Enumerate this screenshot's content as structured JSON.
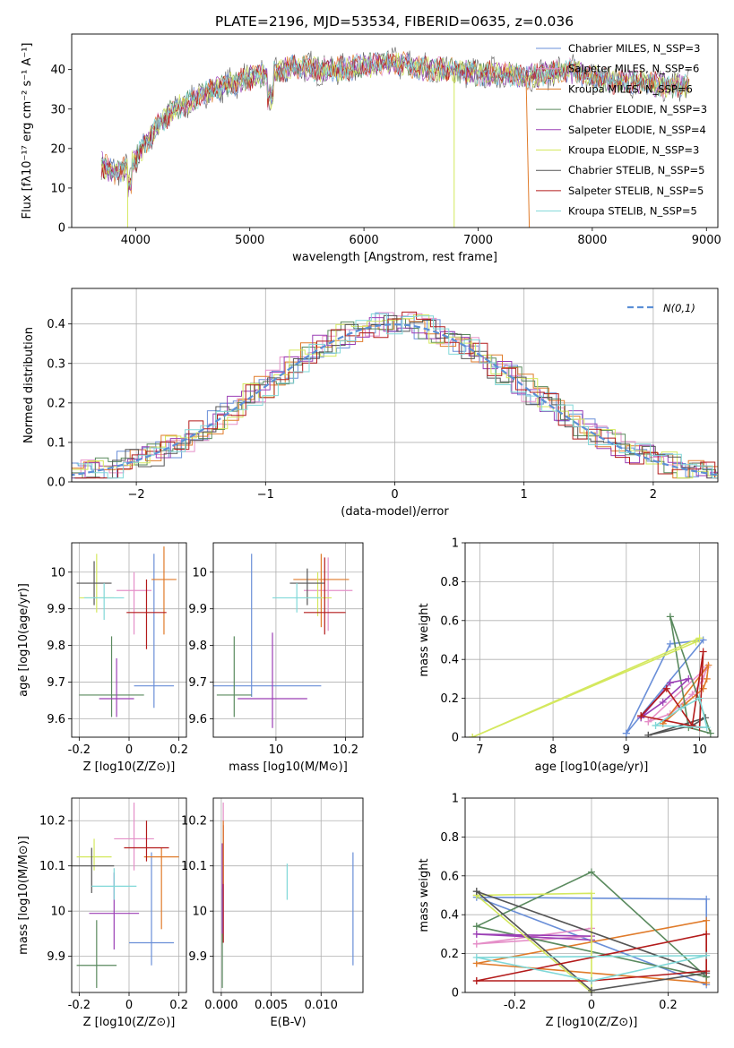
{
  "figure_title": "PLATE=2196, MJD=53534, FIBERID=0635, z=0.036",
  "colors": [
    "#6a8fd8",
    "#e58fc8",
    "#e07b2a",
    "#5a8a5e",
    "#9b3fb5",
    "#d4e85e",
    "#555555",
    "#b31b1b",
    "#80d8d8"
  ],
  "chart_data": [
    {
      "id": "spectrum",
      "type": "line",
      "title": "PLATE=2196, MJD=53534, FIBERID=0635, z=0.036",
      "xlabel": "wavelength [Angstrom, rest frame]",
      "ylabel": "Flux [fλ10⁻¹⁷ erg cm⁻² s⁻¹ A⁻¹]",
      "xlim": [
        3440,
        9100
      ],
      "ylim": [
        0,
        49
      ],
      "xticks": [
        "4000",
        "5000",
        "6000",
        "7000",
        "8000",
        "9000"
      ],
      "yticks": [
        "0",
        "10",
        "20",
        "30",
        "40"
      ],
      "legend_position": "upper-right",
      "series": [
        {
          "name": "Chabrier MILES, N_SSP=3"
        },
        {
          "name": "Salpeter MILES, N_SSP=6"
        },
        {
          "name": "Kroupa MILES, N_SSP=6"
        },
        {
          "name": "Chabrier ELODIE, N_SSP=3"
        },
        {
          "name": "Salpeter ELODIE, N_SSP=4"
        },
        {
          "name": "Kroupa ELODIE, N_SSP=3"
        },
        {
          "name": "Chabrier STELIB, N_SSP=5"
        },
        {
          "name": "Salpeter STELIB, N_SSP=5"
        },
        {
          "name": "Kroupa STELIB, N_SSP=5"
        }
      ],
      "continuum": {
        "x": [
          3700,
          3800,
          3900,
          4000,
          4100,
          4200,
          4300,
          4400,
          4600,
          4800,
          5000,
          5200,
          5400,
          5600,
          5800,
          6000,
          6200,
          6400,
          6600,
          6800,
          7000,
          7200,
          7400,
          7600,
          7800,
          8000,
          8200,
          8400,
          8600,
          8850
        ],
        "y": [
          16,
          14,
          15,
          17,
          22,
          26,
          29,
          31,
          34,
          36,
          38,
          39,
          41,
          40,
          40,
          41,
          42,
          41,
          40,
          40,
          39,
          39,
          38,
          39,
          40,
          38,
          37,
          37,
          36,
          36
        ]
      },
      "dropouts": [
        {
          "x": 3930,
          "label": "Kroupa ELODIE"
        },
        {
          "x": 6790,
          "label": "Kroupa ELODIE"
        },
        {
          "x": 7420,
          "label": "Kroupa MILES"
        }
      ]
    },
    {
      "id": "residuals",
      "type": "histogram",
      "xlabel": "(data-model)/error",
      "ylabel": "Normed distribution",
      "xlim": [
        -2.5,
        2.5
      ],
      "ylim": [
        0,
        0.49
      ],
      "xticks": [
        "−2",
        "−1",
        "0",
        "1",
        "2"
      ],
      "yticks": [
        "0.0",
        "0.1",
        "0.2",
        "0.3",
        "0.4"
      ],
      "legend": "N(0,1)",
      "grid": true
    },
    {
      "id": "age_vs_Z",
      "type": "errorbar",
      "xlabel": "Z [log10(Z/Z⊙)]",
      "ylabel": "age  [log10(age/yr)]",
      "xlim": [
        -0.23,
        0.23
      ],
      "ylim": [
        9.55,
        10.08
      ],
      "xticks": [
        -0.2,
        0.0,
        0.2
      ],
      "yticks": [
        9.6,
        9.7,
        9.8,
        9.9,
        10.0
      ],
      "points": [
        {
          "x": 0.1,
          "y": 9.69,
          "xerr": 0.08,
          "yerr": [
            0.06,
            0.36
          ]
        },
        {
          "x": 0.02,
          "y": 9.95,
          "xerr": 0.07,
          "yerr": [
            0.12,
            0.05
          ]
        },
        {
          "x": 0.14,
          "y": 9.98,
          "xerr": 0.05,
          "yerr": [
            0.15,
            0.09
          ]
        },
        {
          "x": -0.07,
          "y": 9.665,
          "xerr": 0.13,
          "yerr": [
            0.06,
            0.16
          ]
        },
        {
          "x": -0.05,
          "y": 9.655,
          "xerr": 0.07,
          "yerr": [
            0.05,
            0.11
          ]
        },
        {
          "x": -0.13,
          "y": 9.93,
          "xerr": 0.07,
          "yerr": [
            0.04,
            0.12
          ]
        },
        {
          "x": -0.14,
          "y": 9.97,
          "xerr": 0.07,
          "yerr": [
            0.06,
            0.06
          ]
        },
        {
          "x": 0.07,
          "y": 9.89,
          "xerr": 0.08,
          "yerr": [
            0.1,
            0.09
          ]
        },
        {
          "x": -0.1,
          "y": 9.93,
          "xerr": 0.08,
          "yerr": [
            0.06,
            0.04
          ]
        }
      ]
    },
    {
      "id": "age_vs_mass",
      "type": "errorbar",
      "xlabel": "mass [log10(M/M⊙)]",
      "ylabel": "",
      "xlim": [
        9.82,
        10.25
      ],
      "ylim": [
        9.55,
        10.08
      ],
      "xticks": [
        10.0,
        10.2
      ],
      "yticks": [
        9.6,
        9.7,
        9.8,
        9.9,
        10.0
      ],
      "points": [
        {
          "x": 9.93,
          "y": 9.69,
          "xerr": 0.2,
          "yerr": [
            0.03,
            0.36
          ]
        },
        {
          "x": 10.15,
          "y": 9.95,
          "xerr": 0.07,
          "yerr": [
            0.11,
            0.09
          ]
        },
        {
          "x": 10.13,
          "y": 9.98,
          "xerr": 0.08,
          "yerr": [
            0.13,
            0.07
          ]
        },
        {
          "x": 9.88,
          "y": 9.665,
          "xerr": 0.05,
          "yerr": [
            0.06,
            0.16
          ]
        },
        {
          "x": 9.99,
          "y": 9.655,
          "xerr": 0.1,
          "yerr": [
            0.08,
            0.18
          ]
        },
        {
          "x": 10.12,
          "y": 9.93,
          "xerr": 0.04,
          "yerr": [
            0.05,
            0.07
          ]
        },
        {
          "x": 10.09,
          "y": 9.97,
          "xerr": 0.05,
          "yerr": [
            0.06,
            0.04
          ]
        },
        {
          "x": 10.14,
          "y": 9.89,
          "xerr": 0.06,
          "yerr": [
            0.06,
            0.15
          ]
        },
        {
          "x": 10.06,
          "y": 9.93,
          "xerr": 0.07,
          "yerr": [
            0.04,
            0.04
          ]
        }
      ]
    },
    {
      "id": "weight_vs_age",
      "type": "line",
      "xlabel": "age  [log10(age/yr)]",
      "ylabel": "mass weight",
      "xlim": [
        6.8,
        10.25
      ],
      "ylim": [
        0,
        1.0
      ],
      "xticks": [
        7,
        8,
        9,
        10
      ],
      "yticks": [
        0.0,
        0.2,
        0.4,
        0.6,
        0.8,
        1.0
      ],
      "series": [
        {
          "x": [
            9.0,
            9.6,
            10.05,
            9.0
          ],
          "y": [
            0.02,
            0.48,
            0.5,
            0.02
          ]
        },
        {
          "x": [
            9.3,
            9.6,
            9.9,
            10.05,
            10.1,
            9.3
          ],
          "y": [
            0.08,
            0.12,
            0.22,
            0.3,
            0.36,
            0.08
          ]
        },
        {
          "x": [
            9.5,
            9.8,
            10.05,
            10.1,
            10.12,
            9.5
          ],
          "y": [
            0.07,
            0.17,
            0.25,
            0.3,
            0.37,
            0.07
          ]
        },
        {
          "x": [
            9.6,
            9.85,
            10.15,
            9.6
          ],
          "y": [
            0.62,
            0.05,
            0.02,
            0.62
          ]
        },
        {
          "x": [
            9.2,
            9.5,
            9.85,
            9.6,
            9.2
          ],
          "y": [
            0.1,
            0.18,
            0.3,
            0.28,
            0.1
          ]
        },
        {
          "x": [
            6.9,
            10.0,
            9.95,
            6.9
          ],
          "y": [
            0.0,
            0.51,
            0.49,
            0.0
          ]
        },
        {
          "x": [
            9.3,
            9.9,
            10.08,
            9.3
          ],
          "y": [
            0.01,
            0.06,
            0.1,
            0.01
          ]
        },
        {
          "x": [
            9.2,
            9.55,
            9.9,
            10.05,
            10.0,
            9.2
          ],
          "y": [
            0.11,
            0.25,
            0.06,
            0.44,
            0.05,
            0.11
          ]
        },
        {
          "x": [
            9.4,
            9.75,
            10.0,
            10.1,
            9.4
          ],
          "y": [
            0.06,
            0.15,
            0.2,
            0.05,
            0.06
          ]
        }
      ]
    },
    {
      "id": "mass_vs_Z",
      "type": "errorbar",
      "xlabel": "Z [log10(Z/Z⊙)]",
      "ylabel": "mass [log10(M/M⊙)]",
      "xlim": [
        -0.23,
        0.23
      ],
      "ylim": [
        9.82,
        10.25
      ],
      "xticks": [
        -0.2,
        0.0,
        0.2
      ],
      "yticks": [
        9.9,
        10.0,
        10.1,
        10.2
      ],
      "points": [
        {
          "x": 0.09,
          "y": 9.93,
          "xerr": 0.09,
          "yerr": [
            0.05,
            0.2
          ]
        },
        {
          "x": 0.02,
          "y": 10.16,
          "xerr": 0.08,
          "yerr": [
            0.07,
            0.08
          ]
        },
        {
          "x": 0.13,
          "y": 10.12,
          "xerr": 0.07,
          "yerr": [
            0.16,
            0.02
          ]
        },
        {
          "x": -0.13,
          "y": 9.88,
          "xerr": 0.08,
          "yerr": [
            0.05,
            0.1
          ]
        },
        {
          "x": -0.06,
          "y": 9.995,
          "xerr": 0.1,
          "yerr": [
            0.08,
            0.09
          ]
        },
        {
          "x": -0.14,
          "y": 10.12,
          "xerr": 0.07,
          "yerr": [
            0.03,
            0.04
          ]
        },
        {
          "x": -0.15,
          "y": 10.1,
          "xerr": 0.09,
          "yerr": [
            0.06,
            0.04
          ]
        },
        {
          "x": 0.07,
          "y": 10.14,
          "xerr": 0.09,
          "yerr": [
            0.03,
            0.06
          ]
        },
        {
          "x": -0.06,
          "y": 10.055,
          "xerr": 0.09,
          "yerr": [
            0.03,
            0.04
          ]
        }
      ]
    },
    {
      "id": "mass_vs_EBV",
      "type": "errorbar",
      "xlabel": "E(B-V)",
      "ylabel": "",
      "xlim": [
        -0.0008,
        0.0142
      ],
      "ylim": [
        9.82,
        10.25
      ],
      "xticks": [
        "0.000",
        "0.005",
        "0.010"
      ],
      "yticks": [
        9.9,
        10.0,
        10.1,
        10.2
      ],
      "points": [
        {
          "x": 0.0132,
          "y": 10.0,
          "yerr": [
            0.12,
            0.13
          ]
        },
        {
          "x": 0.0002,
          "y": 10.1,
          "yerr": [
            0.17,
            0.14
          ]
        },
        {
          "x": 0.0002,
          "y": 10.07,
          "yerr": [
            0.14,
            0.12
          ]
        },
        {
          "x": 0.0001,
          "y": 9.95,
          "yerr": [
            0.12,
            0.1
          ]
        },
        {
          "x": 0.0001,
          "y": 10.05,
          "yerr": [
            0.1,
            0.1
          ]
        },
        {
          "x": 0.0066,
          "y": 10.065,
          "yerr": [
            0.04,
            0.04
          ]
        },
        {
          "x": 0.0002,
          "y": 10.12,
          "yerr": [
            0.06,
            0.08
          ]
        }
      ]
    },
    {
      "id": "weight_vs_Z",
      "type": "line",
      "xlabel": "Z [log10(Z/Z⊙)]",
      "ylabel": "mass weight",
      "xlim": [
        -0.33,
        0.33
      ],
      "ylim": [
        0,
        1.0
      ],
      "xticks": [
        -0.2,
        0.0,
        0.2
      ],
      "yticks": [
        0.0,
        0.2,
        0.4,
        0.6,
        0.8,
        1.0
      ],
      "series": [
        {
          "x": [
            -0.3,
            0.3,
            0.3,
            -0.3
          ],
          "y": [
            0.49,
            0.48,
            0.04,
            0.49
          ]
        },
        {
          "x": [
            -0.3,
            0.0,
            0.0,
            -0.3
          ],
          "y": [
            0.25,
            0.33,
            0.29,
            0.25
          ]
        },
        {
          "x": [
            -0.3,
            0.3,
            0.3,
            -0.3
          ],
          "y": [
            0.15,
            0.37,
            0.05,
            0.15
          ]
        },
        {
          "x": [
            -0.3,
            0.0,
            0.3,
            -0.3
          ],
          "y": [
            0.34,
            0.62,
            0.08,
            0.34
          ]
        },
        {
          "x": [
            -0.3,
            0.0,
            0.0,
            -0.3
          ],
          "y": [
            0.3,
            0.29,
            0.27,
            0.3
          ]
        },
        {
          "x": [
            -0.3,
            0.0,
            0.0,
            -0.3
          ],
          "y": [
            0.5,
            0.51,
            0.0,
            0.5
          ]
        },
        {
          "x": [
            -0.3,
            0.0,
            0.3,
            -0.3
          ],
          "y": [
            0.52,
            0.01,
            0.1,
            0.52
          ]
        },
        {
          "x": [
            -0.3,
            0.0,
            0.3,
            0.3,
            -0.3
          ],
          "y": [
            0.06,
            0.06,
            0.11,
            0.3,
            0.06
          ]
        },
        {
          "x": [
            -0.3,
            0.0,
            0.3,
            -0.3
          ],
          "y": [
            0.18,
            0.06,
            0.19,
            0.18
          ]
        }
      ]
    }
  ]
}
